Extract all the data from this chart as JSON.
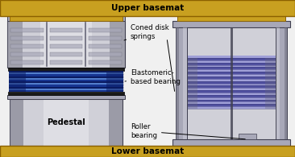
{
  "bg_color": "#f0f0f0",
  "basemat_color": "#C8A020",
  "basemat_edge": "#8B6000",
  "steel_light": "#D0D0D8",
  "steel_lighter": "#E8E8F0",
  "steel_mid": "#A8A8B8",
  "steel_dark": "#686878",
  "steel_edge": "#404050",
  "steel_highlight": "#F4F4F8",
  "blue_dark": "#0a1a60",
  "blue_mid": "#1a3a9a",
  "blue_light": "#3060d0",
  "blue_highlight": "#6090e0",
  "purple_dark": "#303070",
  "purple_mid": "#5050a0",
  "purple_light": "#8080c0",
  "purple_lighter": "#a0a0d8",
  "black": "#000000",
  "white": "#ffffff",
  "text_color": "#000000",
  "upper_basemat_label": "Upper basemat",
  "lower_basemat_label": "Lower basemat",
  "pedestal_label": "Pedestal",
  "coned_label": "Coned disk\nsprings",
  "elastomeric_label": "Elastomeric-\nbased bearing",
  "roller_label": "Roller\nbearing",
  "fig_w": 3.66,
  "fig_h": 1.95,
  "dpi": 100
}
